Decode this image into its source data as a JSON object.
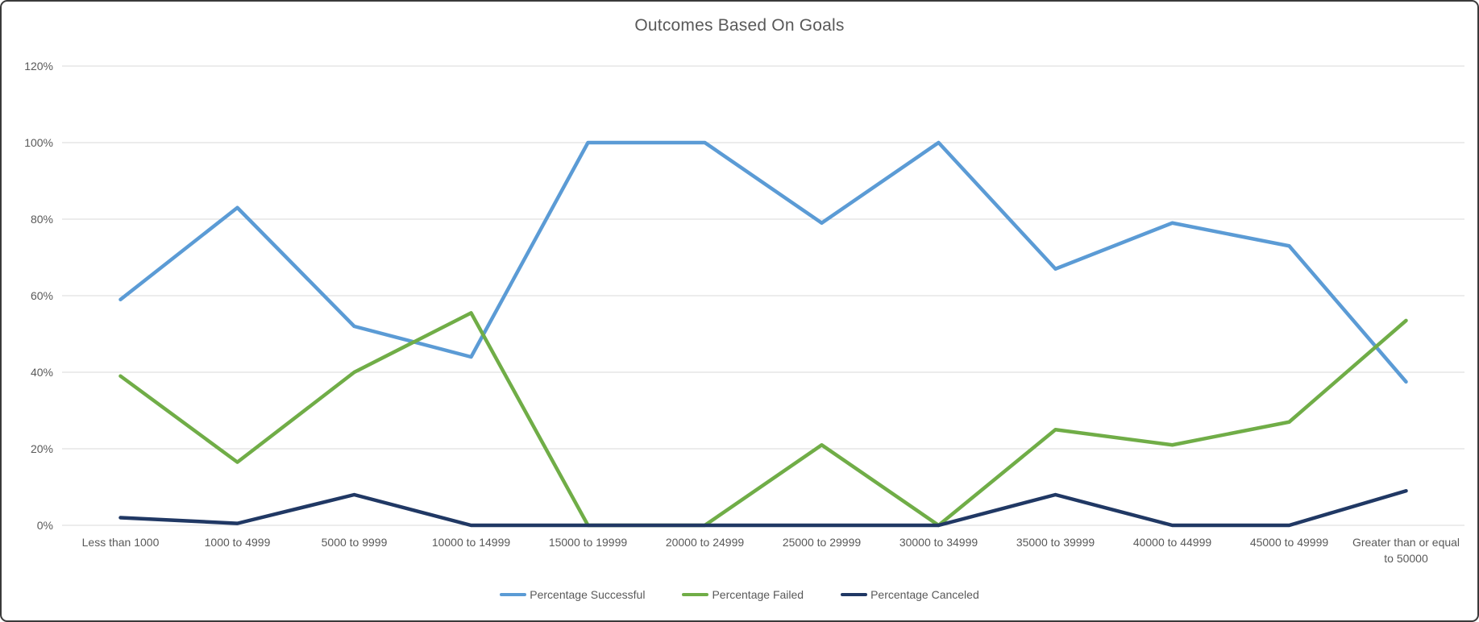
{
  "window": {
    "background": "#ffffff",
    "border_color": "#3a3a3a"
  },
  "chart": {
    "title_color": "#595959",
    "axis_label_color": "#595959",
    "gridline_color": "#d9d9d9"
  },
  "chart_data": {
    "type": "line",
    "title": "Outcomes Based On Goals",
    "categories": [
      "Less than 1000",
      "1000 to 4999",
      "5000 to 9999",
      "10000 to 14999",
      "15000 to 19999",
      "20000 to 24999",
      "25000 to 29999",
      "30000 to 34999",
      "35000 to 39999",
      "40000 to 44999",
      "45000 to 49999",
      "Greater than or equal to 50000"
    ],
    "series": [
      {
        "name": "Percentage Successful",
        "color": "#5B9BD5",
        "values": [
          59,
          83,
          52,
          44,
          100,
          100,
          79,
          100,
          67,
          79,
          73,
          37.5
        ]
      },
      {
        "name": "Percentage Failed",
        "color": "#70AD47",
        "values": [
          39,
          16.5,
          40,
          55.5,
          0,
          0,
          21,
          0,
          25,
          21,
          27,
          53.5
        ]
      },
      {
        "name": "Percentage Canceled",
        "color": "#203864",
        "values": [
          2,
          0.5,
          8,
          0,
          0,
          0,
          0,
          0,
          8,
          0,
          0,
          9
        ]
      }
    ],
    "y_ticks": [
      "0%",
      "20%",
      "40%",
      "60%",
      "80%",
      "100%",
      "120%"
    ],
    "y_tick_step": 20,
    "ylim": [
      0,
      120
    ],
    "grid": true,
    "legend_position": "bottom"
  }
}
